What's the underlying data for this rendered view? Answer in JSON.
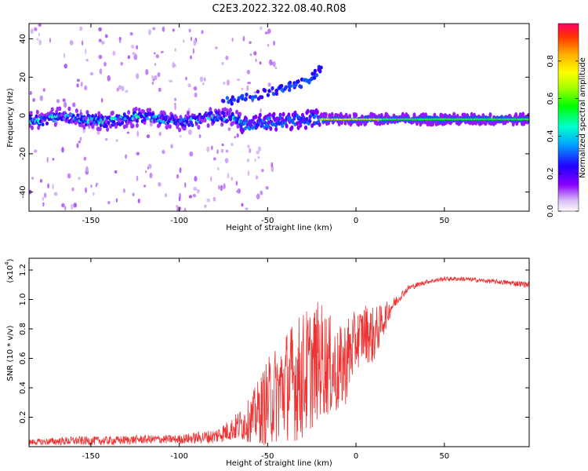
{
  "title": "C2E3.2022.322.08.40.R08",
  "chart_data": [
    {
      "type": "heatmap",
      "xlabel": "Height of straight line (km)",
      "ylabel": "Frequency (Hz)",
      "xlim": [
        -185,
        98
      ],
      "ylim": [
        -50,
        48
      ],
      "xticks": [
        -150,
        -100,
        -50,
        0,
        50
      ],
      "yticks": [
        -40,
        -20,
        0,
        20,
        40
      ],
      "colorbar": {
        "label": "Normalized spectral amplitude",
        "range": [
          0,
          1
        ],
        "ticks": [
          0.0,
          0.2,
          0.4,
          0.6,
          0.8
        ],
        "tick_labels": [
          "0.0",
          "0.2",
          "0.4",
          "0.6",
          "0.8"
        ],
        "colormap": "rainbow"
      },
      "features": [
        {
          "name": "main-band",
          "x": [
            -185,
            -65
          ],
          "y_center": -2,
          "amplitude": 0.3
        },
        {
          "name": "rising-branch",
          "points": [
            [
              -75,
              7
            ],
            [
              -65,
              8
            ],
            [
              -55,
              11
            ],
            [
              -45,
              13
            ],
            [
              -38,
              15
            ],
            [
              -32,
              16
            ],
            [
              -25,
              20
            ],
            [
              -20,
              26
            ]
          ],
          "amplitude": 0.25
        },
        {
          "name": "lower-branch",
          "x": [
            -65,
            -20
          ],
          "y_center": -5,
          "amplitude": 0.25
        },
        {
          "name": "strong-tone",
          "x": [
            -20,
            98
          ],
          "y_center": -2,
          "amplitude": 0.55
        }
      ]
    },
    {
      "type": "line",
      "xlabel": "Height of straight line (km)",
      "ylabel": "SNR (10 * v/v)",
      "scale_label": "(x10",
      "scale_exponent": "4",
      "scale_suffix": ")",
      "xlim": [
        -185,
        98
      ],
      "ylim": [
        0,
        1.28
      ],
      "xticks": [
        -150,
        -100,
        -50,
        0,
        50
      ],
      "yticks": [
        0.2,
        0.4,
        0.6,
        0.8,
        1.0,
        1.2
      ],
      "ytick_labels": [
        "0.2",
        "0.4",
        "0.6",
        "0.8",
        "1.0",
        "1.2"
      ],
      "color": "#ee3333",
      "series": [
        {
          "x": [
            -185,
            -160,
            -140,
            -120,
            -100,
            -80,
            -70,
            -60,
            -50,
            -40,
            -30,
            -20,
            -15,
            -10,
            -5,
            0,
            5,
            10,
            15,
            20,
            25,
            30,
            40,
            50,
            60,
            70,
            80,
            90,
            98
          ],
          "y": [
            0.03,
            0.04,
            0.04,
            0.05,
            0.05,
            0.07,
            0.12,
            0.18,
            0.3,
            0.42,
            0.48,
            0.6,
            0.55,
            0.5,
            0.6,
            0.72,
            0.78,
            0.75,
            0.85,
            0.95,
            1.02,
            1.08,
            1.12,
            1.14,
            1.14,
            1.13,
            1.12,
            1.11,
            1.1
          ],
          "noise": [
            0.02,
            0.03,
            0.03,
            0.03,
            0.03,
            0.05,
            0.08,
            0.15,
            0.3,
            0.38,
            0.45,
            0.4,
            0.35,
            0.3,
            0.3,
            0.2,
            0.2,
            0.2,
            0.12,
            0.05,
            0.03,
            0.02,
            0.015,
            0.015,
            0.015,
            0.015,
            0.015,
            0.02,
            0.02
          ]
        }
      ]
    }
  ]
}
